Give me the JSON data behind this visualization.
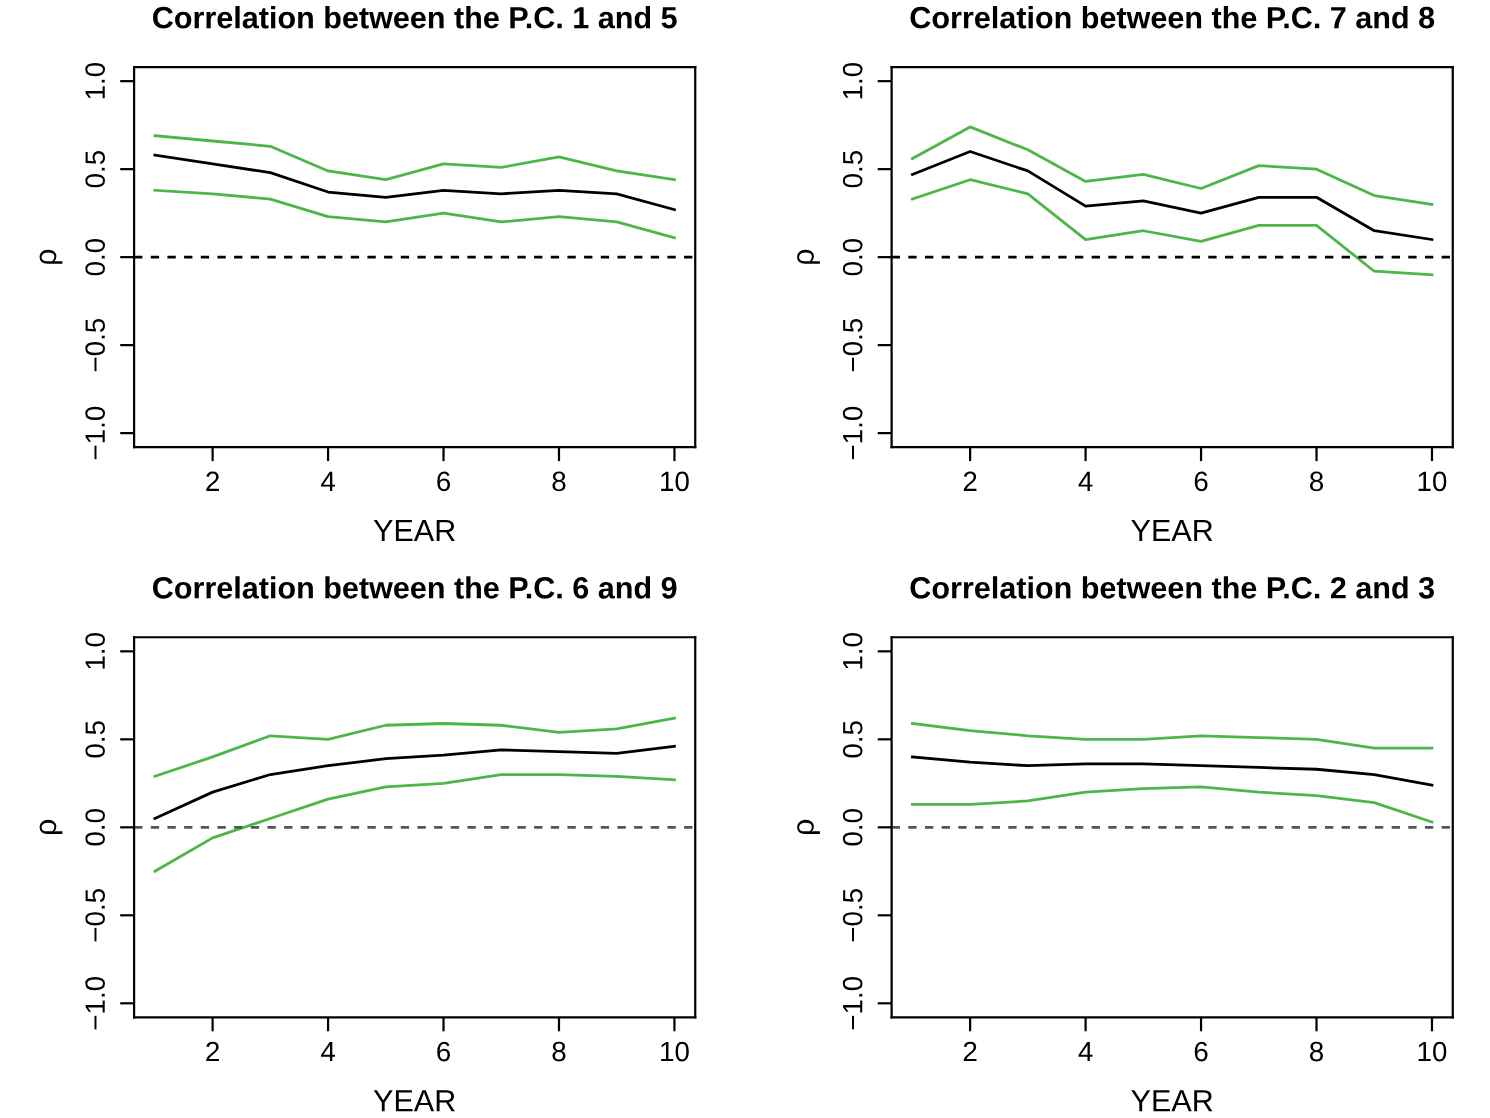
{
  "chart_data": [
    {
      "type": "line",
      "title": "Correlation between the P.C. 1 and 5",
      "xlabel": "YEAR",
      "ylabel": "ρ",
      "x": [
        1,
        2,
        3,
        4,
        5,
        6,
        7,
        8,
        9,
        10
      ],
      "series": [
        {
          "color": "#4cb648",
          "values": [
            0.69,
            0.66,
            0.63,
            0.49,
            0.44,
            0.53,
            0.51,
            0.57,
            0.49,
            0.44
          ]
        },
        {
          "color": "#000000",
          "values": [
            0.58,
            0.53,
            0.48,
            0.37,
            0.34,
            0.38,
            0.36,
            0.38,
            0.36,
            0.27
          ]
        },
        {
          "color": "#4cb648",
          "values": [
            0.38,
            0.36,
            0.33,
            0.23,
            0.2,
            0.25,
            0.2,
            0.23,
            0.2,
            0.11
          ]
        }
      ],
      "xlim": [
        0.64,
        10.36
      ],
      "ylim": [
        -1.08,
        1.08
      ],
      "xticks": [
        2,
        4,
        6,
        8,
        10
      ],
      "yticks": [
        {
          "value": -1.0,
          "label": "−1.0"
        },
        {
          "value": -0.5,
          "label": "−0.5"
        },
        {
          "value": 0.0,
          "label": "0.0"
        },
        {
          "value": 0.5,
          "label": "0.5"
        },
        {
          "value": 1.0,
          "label": "1.0"
        }
      ],
      "ref_lines": [
        {
          "axis": "y",
          "value": 0,
          "line_style": "dashed",
          "color": "#000000"
        }
      ],
      "grid": false,
      "legend": false,
      "marker": "none",
      "line_style": "solid"
    },
    {
      "type": "line",
      "title": "Correlation between the P.C. 7 and 8",
      "xlabel": "YEAR",
      "ylabel": "ρ",
      "x": [
        1,
        2,
        3,
        4,
        5,
        6,
        7,
        8,
        9,
        10
      ],
      "series": [
        {
          "color": "#4cb648",
          "values": [
            0.56,
            0.74,
            0.61,
            0.43,
            0.47,
            0.39,
            0.52,
            0.5,
            0.35,
            0.3
          ]
        },
        {
          "color": "#000000",
          "values": [
            0.47,
            0.6,
            0.49,
            0.29,
            0.32,
            0.25,
            0.34,
            0.34,
            0.15,
            0.1
          ]
        },
        {
          "color": "#4cb648",
          "values": [
            0.33,
            0.44,
            0.36,
            0.1,
            0.15,
            0.09,
            0.18,
            0.18,
            -0.08,
            -0.1
          ]
        }
      ],
      "xlim": [
        0.64,
        10.36
      ],
      "ylim": [
        -1.08,
        1.08
      ],
      "xticks": [
        2,
        4,
        6,
        8,
        10
      ],
      "yticks": [
        {
          "value": -1.0,
          "label": "−1.0"
        },
        {
          "value": -0.5,
          "label": "−0.5"
        },
        {
          "value": 0.0,
          "label": "0.0"
        },
        {
          "value": 0.5,
          "label": "0.5"
        },
        {
          "value": 1.0,
          "label": "1.0"
        }
      ],
      "ref_lines": [
        {
          "axis": "y",
          "value": 0,
          "line_style": "dashed",
          "color": "#000000"
        }
      ],
      "grid": false,
      "legend": false,
      "marker": "none",
      "line_style": "solid"
    },
    {
      "type": "line",
      "title": "Correlation between the P.C. 6 and 9",
      "xlabel": "YEAR",
      "ylabel": "ρ",
      "x": [
        1,
        2,
        3,
        4,
        5,
        6,
        7,
        8,
        9,
        10
      ],
      "series": [
        {
          "color": "#4cb648",
          "values": [
            0.29,
            0.4,
            0.52,
            0.5,
            0.58,
            0.59,
            0.58,
            0.54,
            0.56,
            0.62
          ]
        },
        {
          "color": "#000000",
          "values": [
            0.05,
            0.2,
            0.3,
            0.35,
            0.39,
            0.41,
            0.44,
            0.43,
            0.42,
            0.46
          ]
        },
        {
          "color": "#4cb648",
          "values": [
            -0.25,
            -0.06,
            0.05,
            0.16,
            0.23,
            0.25,
            0.3,
            0.3,
            0.29,
            0.27
          ]
        }
      ],
      "xlim": [
        0.64,
        10.36
      ],
      "ylim": [
        -1.08,
        1.08
      ],
      "xticks": [
        2,
        4,
        6,
        8,
        10
      ],
      "yticks": [
        {
          "value": -1.0,
          "label": "−1.0"
        },
        {
          "value": -0.5,
          "label": "−0.5"
        },
        {
          "value": 0.0,
          "label": "0.0"
        },
        {
          "value": 0.5,
          "label": "0.5"
        },
        {
          "value": 1.0,
          "label": "1.0"
        }
      ],
      "ref_lines": [
        {
          "axis": "y",
          "value": 0,
          "line_style": "dashed",
          "color": "#555555"
        }
      ],
      "grid": false,
      "legend": false,
      "marker": "none",
      "line_style": "solid"
    },
    {
      "type": "line",
      "title": "Correlation between the P.C. 2 and 3",
      "xlabel": "YEAR",
      "ylabel": "ρ",
      "x": [
        1,
        2,
        3,
        4,
        5,
        6,
        7,
        8,
        9,
        10
      ],
      "series": [
        {
          "color": "#4cb648",
          "values": [
            0.59,
            0.55,
            0.52,
            0.5,
            0.5,
            0.52,
            0.51,
            0.5,
            0.45,
            0.45
          ]
        },
        {
          "color": "#000000",
          "values": [
            0.4,
            0.37,
            0.35,
            0.36,
            0.36,
            0.35,
            0.34,
            0.33,
            0.3,
            0.24
          ]
        },
        {
          "color": "#4cb648",
          "values": [
            0.13,
            0.13,
            0.15,
            0.2,
            0.22,
            0.23,
            0.2,
            0.18,
            0.14,
            0.03
          ]
        }
      ],
      "xlim": [
        0.64,
        10.36
      ],
      "ylim": [
        -1.08,
        1.08
      ],
      "xticks": [
        2,
        4,
        6,
        8,
        10
      ],
      "yticks": [
        {
          "value": -1.0,
          "label": "−1.0"
        },
        {
          "value": -0.5,
          "label": "−0.5"
        },
        {
          "value": 0.0,
          "label": "0.0"
        },
        {
          "value": 0.5,
          "label": "0.5"
        },
        {
          "value": 1.0,
          "label": "1.0"
        }
      ],
      "ref_lines": [
        {
          "axis": "y",
          "value": 0,
          "line_style": "dashed",
          "color": "#555555"
        }
      ],
      "grid": false,
      "legend": false,
      "marker": "none",
      "line_style": "solid"
    }
  ]
}
